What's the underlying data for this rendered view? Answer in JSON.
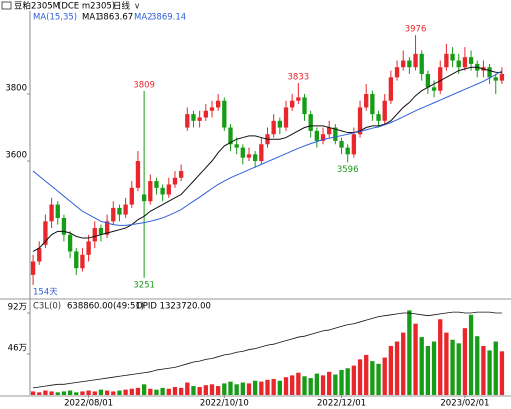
{
  "chart_data": {
    "type": "candlestick",
    "title": "豆粕2305M",
    "subtitle": "(DCE m2305)",
    "period": "日线",
    "indicator": "MA(15,35)",
    "period_label": "154天",
    "categories": [
      null,
      null,
      null,
      null,
      null,
      null,
      null,
      null,
      null,
      "2022/08/01",
      null,
      null,
      null,
      null,
      null,
      null,
      null,
      null,
      null,
      null,
      null,
      null,
      null,
      null,
      null,
      null,
      null,
      null,
      null,
      null,
      null,
      "2022/10/10",
      null,
      null,
      null,
      null,
      null,
      null,
      null,
      null,
      null,
      null,
      null,
      null,
      null,
      null,
      null,
      null,
      null,
      null,
      "2022/12/01",
      null,
      null,
      null,
      null,
      null,
      null,
      null,
      null,
      null,
      null,
      null,
      null,
      null,
      null,
      null,
      null,
      null,
      null,
      null,
      "2023/02/01",
      null,
      null,
      null,
      null,
      null,
      null
    ],
    "candles": [
      [
        3260,
        3320,
        3230,
        3300
      ],
      [
        3300,
        3360,
        3290,
        3340
      ],
      [
        3350,
        3440,
        3340,
        3420
      ],
      [
        3420,
        3490,
        3400,
        3470
      ],
      [
        3470,
        3480,
        3410,
        3430
      ],
      [
        3430,
        3440,
        3360,
        3380
      ],
      [
        3380,
        3390,
        3310,
        3330
      ],
      [
        3330,
        3340,
        3260,
        3280
      ],
      [
        3280,
        3340,
        3270,
        3320
      ],
      [
        3320,
        3380,
        3300,
        3360
      ],
      [
        3360,
        3420,
        3340,
        3400
      ],
      [
        3400,
        3410,
        3360,
        3380
      ],
      [
        3380,
        3440,
        3370,
        3420
      ],
      [
        3420,
        3480,
        3410,
        3460
      ],
      [
        3460,
        3470,
        3420,
        3440
      ],
      [
        3440,
        3490,
        3430,
        3470
      ],
      [
        3470,
        3540,
        3460,
        3520
      ],
      [
        3520,
        3630,
        3510,
        3600
      ],
      [
        3500,
        3809,
        3251,
        3480
      ],
      [
        3480,
        3560,
        3470,
        3540
      ],
      [
        3540,
        3550,
        3500,
        3520
      ],
      [
        3520,
        3530,
        3480,
        3500
      ],
      [
        3500,
        3550,
        3490,
        3530
      ],
      [
        3530,
        3570,
        3520,
        3550
      ],
      [
        3550,
        3590,
        3540,
        3570
      ],
      [
        3700,
        3760,
        3690,
        3740
      ],
      [
        3740,
        3750,
        3700,
        3720
      ],
      [
        3720,
        3750,
        3700,
        3730
      ],
      [
        3730,
        3770,
        3720,
        3750
      ],
      [
        3750,
        3780,
        3730,
        3760
      ],
      [
        3760,
        3800,
        3750,
        3780
      ],
      [
        3780,
        3790,
        3690,
        3700
      ],
      [
        3700,
        3710,
        3630,
        3650
      ],
      [
        3650,
        3670,
        3620,
        3640
      ],
      [
        3640,
        3650,
        3590,
        3610
      ],
      [
        3610,
        3640,
        3600,
        3620
      ],
      [
        3620,
        3630,
        3580,
        3600
      ],
      [
        3600,
        3670,
        3590,
        3650
      ],
      [
        3650,
        3700,
        3640,
        3680
      ],
      [
        3680,
        3740,
        3670,
        3720
      ],
      [
        3720,
        3730,
        3680,
        3700
      ],
      [
        3700,
        3780,
        3690,
        3760
      ],
      [
        3760,
        3800,
        3750,
        3780
      ],
      [
        3780,
        3833,
        3770,
        3790
      ],
      [
        3790,
        3800,
        3720,
        3740
      ],
      [
        3740,
        3750,
        3670,
        3690
      ],
      [
        3690,
        3700,
        3640,
        3660
      ],
      [
        3660,
        3700,
        3650,
        3680
      ],
      [
        3680,
        3720,
        3670,
        3700
      ],
      [
        3700,
        3710,
        3650,
        3660
      ],
      [
        3660,
        3670,
        3620,
        3640
      ],
      [
        3640,
        3650,
        3596,
        3620
      ],
      [
        3620,
        3700,
        3610,
        3680
      ],
      [
        3680,
        3780,
        3670,
        3760
      ],
      [
        3760,
        3830,
        3750,
        3800
      ],
      [
        3800,
        3810,
        3720,
        3740
      ],
      [
        3740,
        3750,
        3700,
        3720
      ],
      [
        3720,
        3800,
        3710,
        3780
      ],
      [
        3780,
        3870,
        3770,
        3850
      ],
      [
        3850,
        3900,
        3840,
        3880
      ],
      [
        3880,
        3930,
        3870,
        3900
      ],
      [
        3900,
        3910,
        3860,
        3880
      ],
      [
        3880,
        3976,
        3870,
        3920
      ],
      [
        3920,
        3930,
        3840,
        3860
      ],
      [
        3860,
        3870,
        3800,
        3820
      ],
      [
        3820,
        3840,
        3790,
        3810
      ],
      [
        3810,
        3900,
        3800,
        3880
      ],
      [
        3880,
        3950,
        3870,
        3920
      ],
      [
        3920,
        3940,
        3880,
        3900
      ],
      [
        3900,
        3920,
        3860,
        3880
      ],
      [
        3880,
        3940,
        3870,
        3910
      ],
      [
        3910,
        3930,
        3870,
        3890
      ],
      [
        3890,
        3900,
        3850,
        3870
      ],
      [
        3870,
        3900,
        3850,
        3880
      ],
      [
        3880,
        3890,
        3830,
        3850
      ],
      [
        3850,
        3860,
        3800,
        3840
      ],
      [
        3840,
        3880,
        3830,
        3860
      ]
    ],
    "up_color": "#e8262b",
    "down_color": "#169c16",
    "series": [
      {
        "name": "MA1",
        "color": "#111111",
        "values": [
          3330,
          3340,
          3360,
          3380,
          3390,
          3390,
          3385,
          3375,
          3370,
          3370,
          3375,
          3380,
          3385,
          3390,
          3395,
          3400,
          3410,
          3425,
          3435,
          3450,
          3460,
          3470,
          3480,
          3490,
          3500,
          3520,
          3540,
          3560,
          3580,
          3600,
          3625,
          3645,
          3655,
          3665,
          3670,
          3675,
          3675,
          3670,
          3665,
          3665,
          3665,
          3670,
          3680,
          3690,
          3700,
          3705,
          3705,
          3705,
          3700,
          3695,
          3690,
          3685,
          3685,
          3690,
          3700,
          3705,
          3705,
          3710,
          3720,
          3740,
          3760,
          3775,
          3795,
          3810,
          3820,
          3830,
          3840,
          3850,
          3860,
          3870,
          3875,
          3880,
          3880,
          3875,
          3870,
          3865,
          3863.67
        ]
      },
      {
        "name": "MA2",
        "color": "#2f5fd8",
        "values": [
          3570,
          3555,
          3540,
          3525,
          3510,
          3495,
          3480,
          3465,
          3450,
          3440,
          3430,
          3420,
          3415,
          3410,
          3408,
          3408,
          3410,
          3413,
          3416,
          3420,
          3425,
          3430,
          3438,
          3446,
          3455,
          3468,
          3480,
          3492,
          3505,
          3518,
          3530,
          3540,
          3550,
          3558,
          3566,
          3574,
          3582,
          3590,
          3598,
          3606,
          3614,
          3622,
          3630,
          3638,
          3645,
          3652,
          3658,
          3664,
          3668,
          3672,
          3676,
          3680,
          3684,
          3688,
          3693,
          3698,
          3702,
          3708,
          3715,
          3723,
          3732,
          3741,
          3750,
          3758,
          3766,
          3774,
          3782,
          3790,
          3798,
          3806,
          3814,
          3822,
          3830,
          3838,
          3848,
          3858,
          3869.14
        ]
      }
    ],
    "annotations": [
      3809,
      3251,
      3833,
      3596,
      3976
    ],
    "ylim": [
      3194,
      4027
    ],
    "yticks": [
      3600,
      3800
    ],
    "volume": {
      "indicator": "C3L(0)",
      "ratio": "638860.00(49:51)",
      "opid_label": "OPID 1323720.00",
      "values": [
        4,
        3,
        5,
        4,
        3,
        4,
        5,
        3,
        4,
        5,
        4,
        6,
        5,
        4,
        5,
        6,
        7,
        8,
        12,
        7,
        6,
        8,
        7,
        9,
        8,
        14,
        10,
        9,
        11,
        12,
        10,
        13,
        15,
        12,
        14,
        13,
        16,
        15,
        17,
        18,
        16,
        20,
        22,
        25,
        21,
        19,
        24,
        22,
        26,
        23,
        28,
        30,
        33,
        40,
        45,
        38,
        35,
        42,
        55,
        60,
        70,
        95,
        80,
        65,
        55,
        60,
        85,
        70,
        62,
        58,
        75,
        90,
        66,
        55,
        50,
        60,
        49
      ],
      "opid": [
        8,
        9,
        10,
        11,
        12,
        12,
        13,
        14,
        15,
        16,
        17,
        18,
        19,
        20,
        21,
        22,
        23,
        24,
        25,
        26,
        28,
        29,
        30,
        31,
        33,
        35,
        37,
        38,
        40,
        41,
        43,
        45,
        46,
        48,
        49,
        51,
        52,
        54,
        56,
        57,
        59,
        61,
        63,
        65,
        66,
        68,
        70,
        72,
        73,
        75,
        77,
        79,
        80,
        82,
        84,
        86,
        88,
        89,
        90,
        91,
        92,
        92,
        91,
        90,
        89,
        90,
        91,
        92,
        93,
        93,
        92,
        92,
        93,
        93,
        93,
        92,
        92
      ],
      "opid_color": "#111111",
      "ylim": [
        0,
        101
      ],
      "yticks": [
        {
          "value": 46,
          "label": "46万"
        },
        {
          "value": 92,
          "label": "92万"
        }
      ]
    }
  }
}
